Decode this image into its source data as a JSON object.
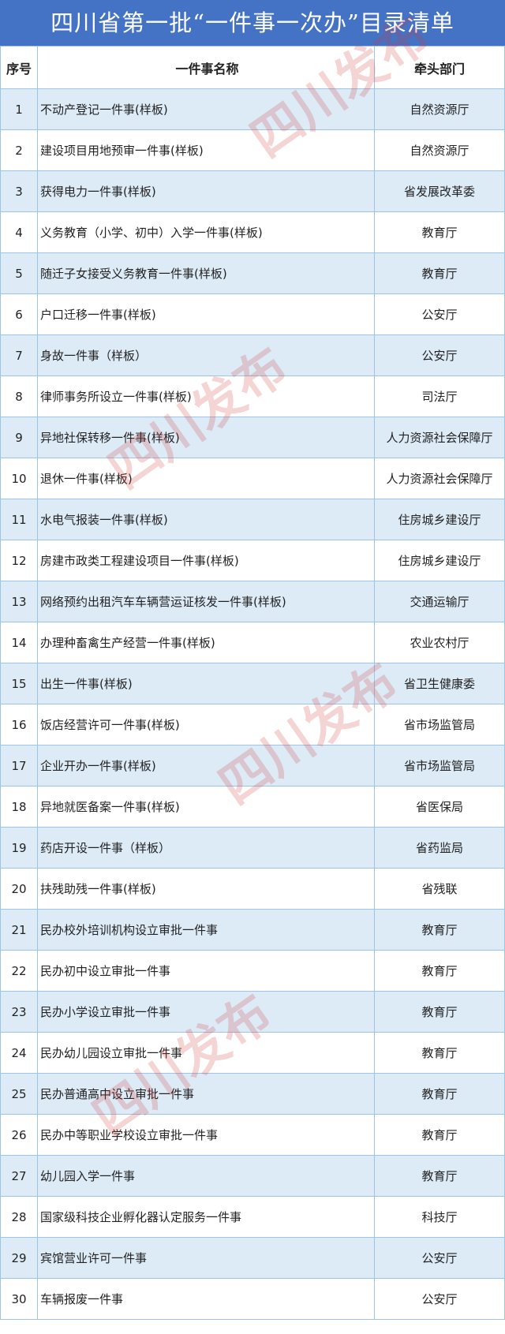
{
  "title": "四川省第一批“一件事一次办”目录清单",
  "headers": {
    "index": "序号",
    "name": "一件事名称",
    "department": "牵头部门"
  },
  "colors": {
    "title_bg": "#4472c4",
    "row_alt": "#ddebf7",
    "border": "#9dc3e6",
    "watermark": "#d23c3c"
  },
  "watermark": "四川发布",
  "rows": [
    {
      "index": "1",
      "name": "不动产登记一件事(样板)",
      "department": "自然资源厅"
    },
    {
      "index": "2",
      "name": "建设项目用地预审一件事(样板)",
      "department": "自然资源厅"
    },
    {
      "index": "3",
      "name": "获得电力一件事(样板)",
      "department": "省发展改革委"
    },
    {
      "index": "4",
      "name": "义务教育（小学、初中）入学一件事(样板)",
      "department": "教育厅"
    },
    {
      "index": "5",
      "name": "随迁子女接受义务教育一件事(样板)",
      "department": "教育厅"
    },
    {
      "index": "6",
      "name": "户口迁移一件事(样板)",
      "department": "公安厅"
    },
    {
      "index": "7",
      "name": "身故一件事（样板）",
      "department": "公安厅"
    },
    {
      "index": "8",
      "name": "律师事务所设立一件事(样板)",
      "department": "司法厅"
    },
    {
      "index": "9",
      "name": "异地社保转移一件事(样板)",
      "department": "人力资源社会保障厅"
    },
    {
      "index": "10",
      "name": "退休一件事(样板)",
      "department": "人力资源社会保障厅"
    },
    {
      "index": "11",
      "name": "水电气报装一件事(样板)",
      "department": "住房城乡建设厅"
    },
    {
      "index": "12",
      "name": "房建市政类工程建设项目一件事(样板)",
      "department": "住房城乡建设厅"
    },
    {
      "index": "13",
      "name": "网络预约出租汽车车辆营运证核发一件事(样板)",
      "department": "交通运输厅"
    },
    {
      "index": "14",
      "name": "办理种畜禽生产经营一件事(样板)",
      "department": "农业农村厅"
    },
    {
      "index": "15",
      "name": "出生一件事(样板)",
      "department": "省卫生健康委"
    },
    {
      "index": "16",
      "name": "饭店经营许可一件事(样板)",
      "department": "省市场监管局"
    },
    {
      "index": "17",
      "name": "企业开办一件事(样板)",
      "department": "省市场监管局"
    },
    {
      "index": "18",
      "name": "异地就医备案一件事(样板)",
      "department": "省医保局"
    },
    {
      "index": "19",
      "name": "药店开设一件事（样板）",
      "department": "省药监局"
    },
    {
      "index": "20",
      "name": "扶残助残一件事(样板)",
      "department": "省残联"
    },
    {
      "index": "21",
      "name": "民办校外培训机构设立审批一件事",
      "department": "教育厅"
    },
    {
      "index": "22",
      "name": "民办初中设立审批一件事",
      "department": "教育厅"
    },
    {
      "index": "23",
      "name": "民办小学设立审批一件事",
      "department": "教育厅"
    },
    {
      "index": "24",
      "name": "民办幼儿园设立审批一件事",
      "department": "教育厅"
    },
    {
      "index": "25",
      "name": "民办普通高中设立审批一件事",
      "department": "教育厅"
    },
    {
      "index": "26",
      "name": "民办中等职业学校设立审批一件事",
      "department": "教育厅"
    },
    {
      "index": "27",
      "name": "幼儿园入学一件事",
      "department": "教育厅"
    },
    {
      "index": "28",
      "name": "国家级科技企业孵化器认定服务一件事",
      "department": "科技厅"
    },
    {
      "index": "29",
      "name": "宾馆营业许可一件事",
      "department": "公安厅"
    },
    {
      "index": "30",
      "name": "车辆报废一件事",
      "department": "公安厅"
    }
  ]
}
